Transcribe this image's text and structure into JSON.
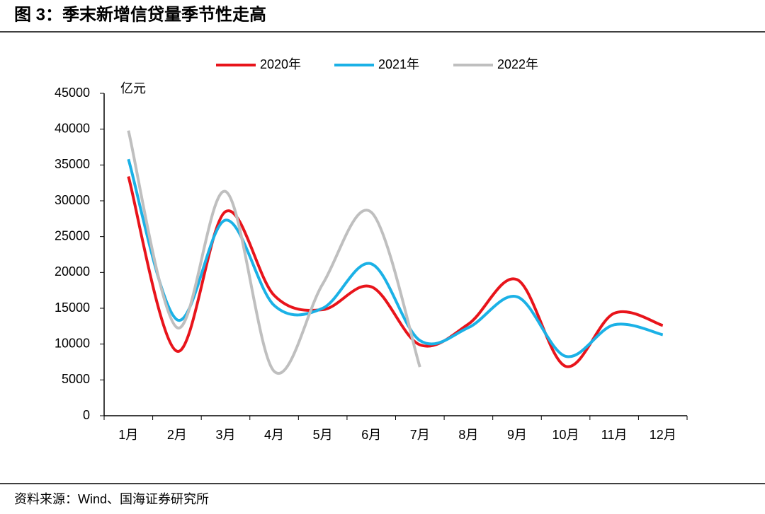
{
  "chart_data": {
    "type": "line",
    "title": "图 3：季末新增信贷量季节性走高",
    "y_label": "亿元",
    "source": "资料来源：Wind、国海证券研究所",
    "categories": [
      "1月",
      "2月",
      "3月",
      "4月",
      "5月",
      "6月",
      "7月",
      "8月",
      "9月",
      "10月",
      "11月",
      "12月"
    ],
    "series": [
      {
        "name": "2020年",
        "color": "#e8141b",
        "values": [
          33400,
          9000,
          28500,
          16800,
          14800,
          18000,
          9900,
          12800,
          19000,
          6900,
          14300,
          12600
        ]
      },
      {
        "name": "2021年",
        "color": "#1bb1e6",
        "values": [
          35800,
          13400,
          27300,
          15400,
          15000,
          21200,
          10500,
          12300,
          16600,
          8300,
          12700,
          11300
        ]
      },
      {
        "name": "2022年",
        "color": "#bfbfbf",
        "values": [
          39800,
          12300,
          31300,
          6200,
          18400,
          28400,
          6800,
          null,
          null,
          null,
          null,
          null
        ]
      }
    ],
    "ylim": [
      0,
      45000
    ],
    "yticks": [
      0,
      5000,
      10000,
      15000,
      20000,
      25000,
      30000,
      35000,
      40000,
      45000
    ],
    "legend": "top"
  }
}
